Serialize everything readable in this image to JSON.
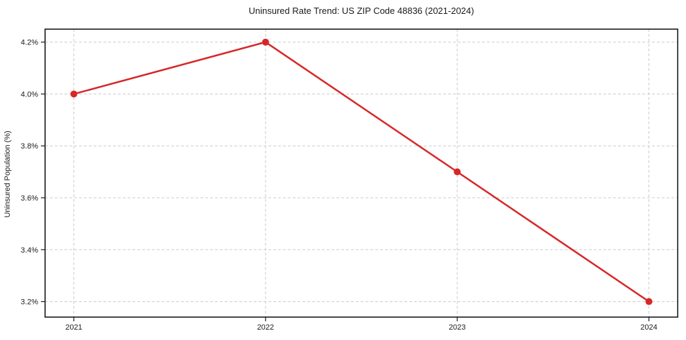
{
  "chart_data": {
    "type": "line",
    "title": "Uninsured Rate Trend: US ZIP Code 48836 (2021-2024)",
    "xlabel": "",
    "ylabel": "Uninsured Population (%)",
    "x": [
      2021,
      2022,
      2023,
      2024
    ],
    "values": [
      4.0,
      4.2,
      3.7,
      3.2
    ],
    "xtick_labels": [
      "2021",
      "2022",
      "2023",
      "2024"
    ],
    "yticks": [
      3.2,
      3.4,
      3.6,
      3.8,
      4.0,
      4.2
    ],
    "ytick_labels": [
      "3.2%",
      "3.4%",
      "3.6%",
      "3.8%",
      "4.0%",
      "4.2%"
    ],
    "xlim": [
      2020.85,
      2024.15
    ],
    "ylim": [
      3.14,
      4.25
    ],
    "grid": true,
    "grid_style": "dashed",
    "legend": "none",
    "line_color": "#d62728",
    "marker": "circle",
    "grid_color": "#cccccc",
    "axis_color": "#1a1a1a",
    "background": "#ffffff"
  }
}
